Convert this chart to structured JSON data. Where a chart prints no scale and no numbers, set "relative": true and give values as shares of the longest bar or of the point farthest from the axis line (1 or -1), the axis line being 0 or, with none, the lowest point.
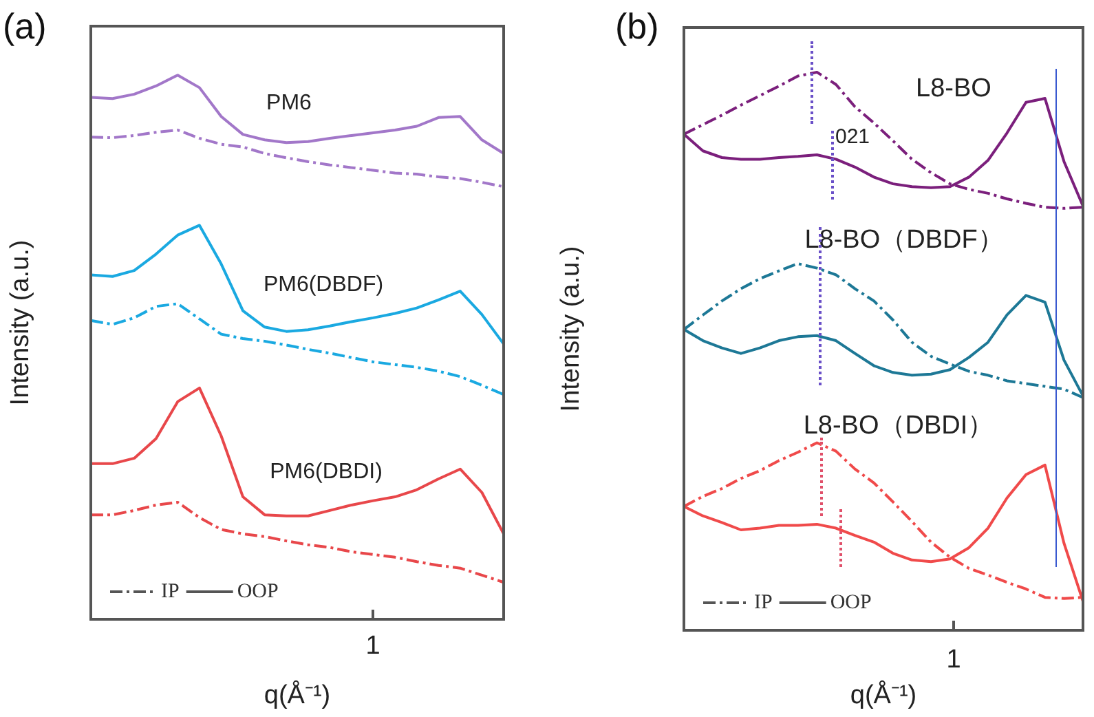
{
  "chart_data": [
    {
      "type": "line",
      "title": "(a)",
      "xlabel": "q(Å⁻¹)",
      "ylabel": "Intensity (a.u.)",
      "relative": true,
      "legend": "bottom left",
      "grid": false,
      "marker": "none",
      "categories": [
        null,
        null,
        null,
        null,
        null,
        null,
        null,
        null,
        null,
        null,
        null,
        null,
        null,
        null,
        null,
        null,
        null,
        null,
        null,
        null
      ],
      "series": [
        {
          "color": "#a277c9",
          "line_style": "solid",
          "values": [
            0.959,
            0.957,
            0.965,
            0.98,
            1.0,
            0.977,
            0.924,
            0.891,
            0.881,
            0.876,
            0.878,
            0.884,
            0.889,
            0.894,
            0.899,
            0.906,
            0.922,
            0.924,
            0.881,
            0.856
          ]
        },
        {
          "color": "#a277c9",
          "line_style": "dashdot",
          "values": [
            0.886,
            0.885,
            0.889,
            0.895,
            0.899,
            0.884,
            0.873,
            0.868,
            0.856,
            0.848,
            0.841,
            0.835,
            0.83,
            0.825,
            0.82,
            0.818,
            0.813,
            0.81,
            0.803,
            0.795
          ]
        },
        {
          "color": "#1aa9e1",
          "line_style": "solid",
          "values": [
            0.633,
            0.63,
            0.641,
            0.671,
            0.706,
            0.724,
            0.653,
            0.567,
            0.537,
            0.529,
            0.532,
            0.539,
            0.547,
            0.554,
            0.562,
            0.572,
            0.587,
            0.603,
            0.56,
            0.506
          ]
        },
        {
          "color": "#1aa9e1",
          "line_style": "dashdot",
          "values": [
            0.549,
            0.542,
            0.554,
            0.575,
            0.58,
            0.552,
            0.524,
            0.516,
            0.511,
            0.504,
            0.496,
            0.489,
            0.481,
            0.473,
            0.468,
            0.463,
            0.456,
            0.446,
            0.43,
            0.413
          ]
        },
        {
          "color": "#e8474a",
          "line_style": "solid",
          "values": [
            0.286,
            0.286,
            0.296,
            0.332,
            0.4,
            0.425,
            0.337,
            0.225,
            0.192,
            0.19,
            0.19,
            0.2,
            0.21,
            0.218,
            0.225,
            0.238,
            0.258,
            0.276,
            0.233,
            0.157
          ]
        },
        {
          "color": "#e8474a",
          "line_style": "dashdot",
          "values": [
            0.192,
            0.192,
            0.2,
            0.21,
            0.215,
            0.187,
            0.165,
            0.157,
            0.152,
            0.144,
            0.137,
            0.132,
            0.124,
            0.119,
            0.114,
            0.106,
            0.099,
            0.094,
            0.081,
            0.068
          ]
        },
        {
          "name": "IP",
          "color": "#555555",
          "line_style": "dashdot",
          "values": [
            null,
            null,
            null,
            null,
            null,
            null,
            null,
            null,
            null,
            null,
            null,
            null,
            null,
            null,
            null,
            null,
            null,
            null,
            null,
            null
          ]
        },
        {
          "name": "OOP",
          "color": "#555555",
          "line_style": "solid",
          "values": [
            null,
            null,
            null,
            null,
            null,
            null,
            null,
            null,
            null,
            null,
            null,
            null,
            null,
            null,
            null,
            null,
            null,
            null,
            null,
            null
          ]
        }
      ],
      "annotations": [
        "PM6",
        "PM6(DBDF)",
        "PM6(DBDI)",
        "1"
      ]
    },
    {
      "type": "line",
      "title": "(b)",
      "xlabel": "q(Å⁻¹)",
      "ylabel": "Intensity (a.u.)",
      "relative": true,
      "legend": "bottom left",
      "grid": false,
      "marker": "none",
      "categories": [
        null,
        null,
        null,
        null,
        null,
        null,
        null,
        null,
        null,
        null,
        null,
        null,
        null,
        null,
        null,
        null,
        null,
        null,
        null,
        null,
        null,
        null
      ],
      "series": [
        {
          "color": "#7b1f7c",
          "line_style": "dashdot",
          "values": [
            0.889,
            0.906,
            0.923,
            0.941,
            0.958,
            0.975,
            0.993,
            1.0,
            0.978,
            0.938,
            0.909,
            0.877,
            0.844,
            0.82,
            0.8,
            0.79,
            0.783,
            0.773,
            0.765,
            0.758,
            0.756,
            0.758
          ]
        },
        {
          "color": "#7b1f7c",
          "line_style": "solid",
          "values": [
            0.889,
            0.859,
            0.847,
            0.844,
            0.844,
            0.847,
            0.849,
            0.852,
            0.844,
            0.83,
            0.812,
            0.8,
            0.795,
            0.793,
            0.795,
            0.812,
            0.842,
            0.891,
            0.946,
            0.953,
            0.84,
            0.76
          ]
        },
        {
          "color": "#1d7896",
          "line_style": "dashdot",
          "values": [
            0.539,
            0.565,
            0.59,
            0.612,
            0.63,
            0.644,
            0.657,
            0.649,
            0.637,
            0.612,
            0.59,
            0.556,
            0.516,
            0.491,
            0.477,
            0.464,
            0.457,
            0.447,
            0.442,
            0.437,
            0.432,
            0.417
          ]
        },
        {
          "color": "#1d7896",
          "line_style": "solid",
          "values": [
            0.539,
            0.519,
            0.506,
            0.496,
            0.506,
            0.519,
            0.526,
            0.528,
            0.519,
            0.496,
            0.474,
            0.462,
            0.457,
            0.459,
            0.467,
            0.489,
            0.516,
            0.565,
            0.6,
            0.588,
            0.484,
            0.42
          ]
        },
        {
          "color": "#f04a4a",
          "line_style": "dashdot",
          "values": [
            0.222,
            0.24,
            0.254,
            0.272,
            0.286,
            0.304,
            0.319,
            0.336,
            0.321,
            0.289,
            0.264,
            0.23,
            0.195,
            0.158,
            0.131,
            0.111,
            0.099,
            0.086,
            0.074,
            0.059,
            0.057,
            0.059
          ]
        },
        {
          "color": "#f04a4a",
          "line_style": "solid",
          "values": [
            0.222,
            0.205,
            0.193,
            0.18,
            0.183,
            0.188,
            0.188,
            0.19,
            0.183,
            0.17,
            0.158,
            0.138,
            0.126,
            0.123,
            0.128,
            0.148,
            0.183,
            0.237,
            0.279,
            0.296,
            0.156,
            0.052
          ]
        },
        {
          "name": "IP",
          "color": "#555555",
          "line_style": "dashdot",
          "values": [
            null,
            null,
            null,
            null,
            null,
            null,
            null,
            null,
            null,
            null,
            null,
            null,
            null,
            null,
            null,
            null,
            null,
            null,
            null,
            null,
            null,
            null
          ]
        },
        {
          "name": "OOP",
          "color": "#555555",
          "line_style": "solid",
          "values": [
            null,
            null,
            null,
            null,
            null,
            null,
            null,
            null,
            null,
            null,
            null,
            null,
            null,
            null,
            null,
            null,
            null,
            null,
            null,
            null,
            null,
            null
          ]
        }
      ],
      "annotations": [
        "L8-BO",
        "021",
        "L8-BO（DBDF）",
        "L8-BO（DBDI）",
        "1"
      ]
    }
  ]
}
